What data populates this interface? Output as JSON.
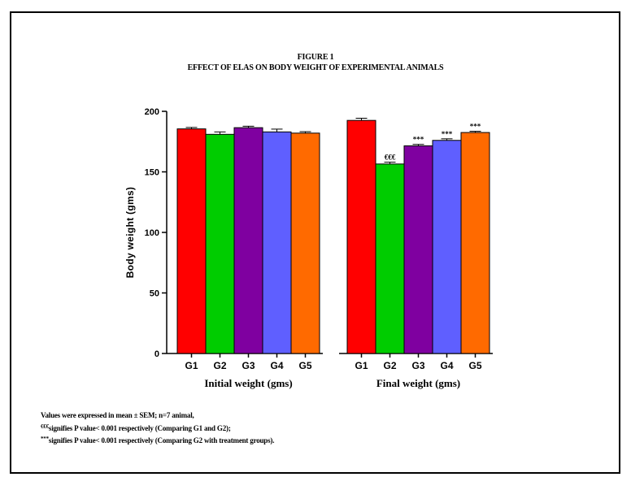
{
  "figure": {
    "number": "FIGURE 1",
    "title": "EFFECT OF ELAS ON BODY WEIGHT OF EXPERIMENTAL ANIMALS"
  },
  "footnotes": {
    "line1": "Values were expressed in mean ± SEM; n=7 animal,",
    "line2_marker": "€€€",
    "line2_text": "signifies P value< 0.001 respectively (Comparing G1 and G2);",
    "line3_marker": "***",
    "line3_text": "signifies P value<  0.001 respectively (Comparing G2 with treatment groups)."
  },
  "chart_data": {
    "type": "bar",
    "ylabel": "Body weight (gms)",
    "ylim": [
      0,
      200
    ],
    "yticks": [
      0,
      50,
      100,
      150,
      200
    ],
    "grid": false,
    "legend": "none",
    "colors": [
      "#ff0000",
      "#00cc00",
      "#7f00a0",
      "#5f5fff",
      "#ff6a00"
    ],
    "groups": [
      {
        "label": "Initial weight (gms)",
        "categories": [
          "G1",
          "G2",
          "G3",
          "G4",
          "G5"
        ],
        "values": [
          185.5,
          181,
          186.5,
          183,
          182
        ],
        "sem": [
          1.2,
          2.0,
          1.2,
          2.3,
          1.2
        ],
        "annotations": [
          "",
          "",
          "",
          "",
          ""
        ]
      },
      {
        "label": "Final weight (gms)",
        "categories": [
          "G1",
          "G2",
          "G3",
          "G4",
          "G5"
        ],
        "values": [
          192.5,
          156.5,
          171.5,
          176,
          182.5
        ],
        "sem": [
          1.8,
          1.5,
          1.2,
          1.3,
          1.0
        ],
        "annotations": [
          "",
          "€€€",
          "***",
          "***",
          "***"
        ]
      }
    ]
  }
}
